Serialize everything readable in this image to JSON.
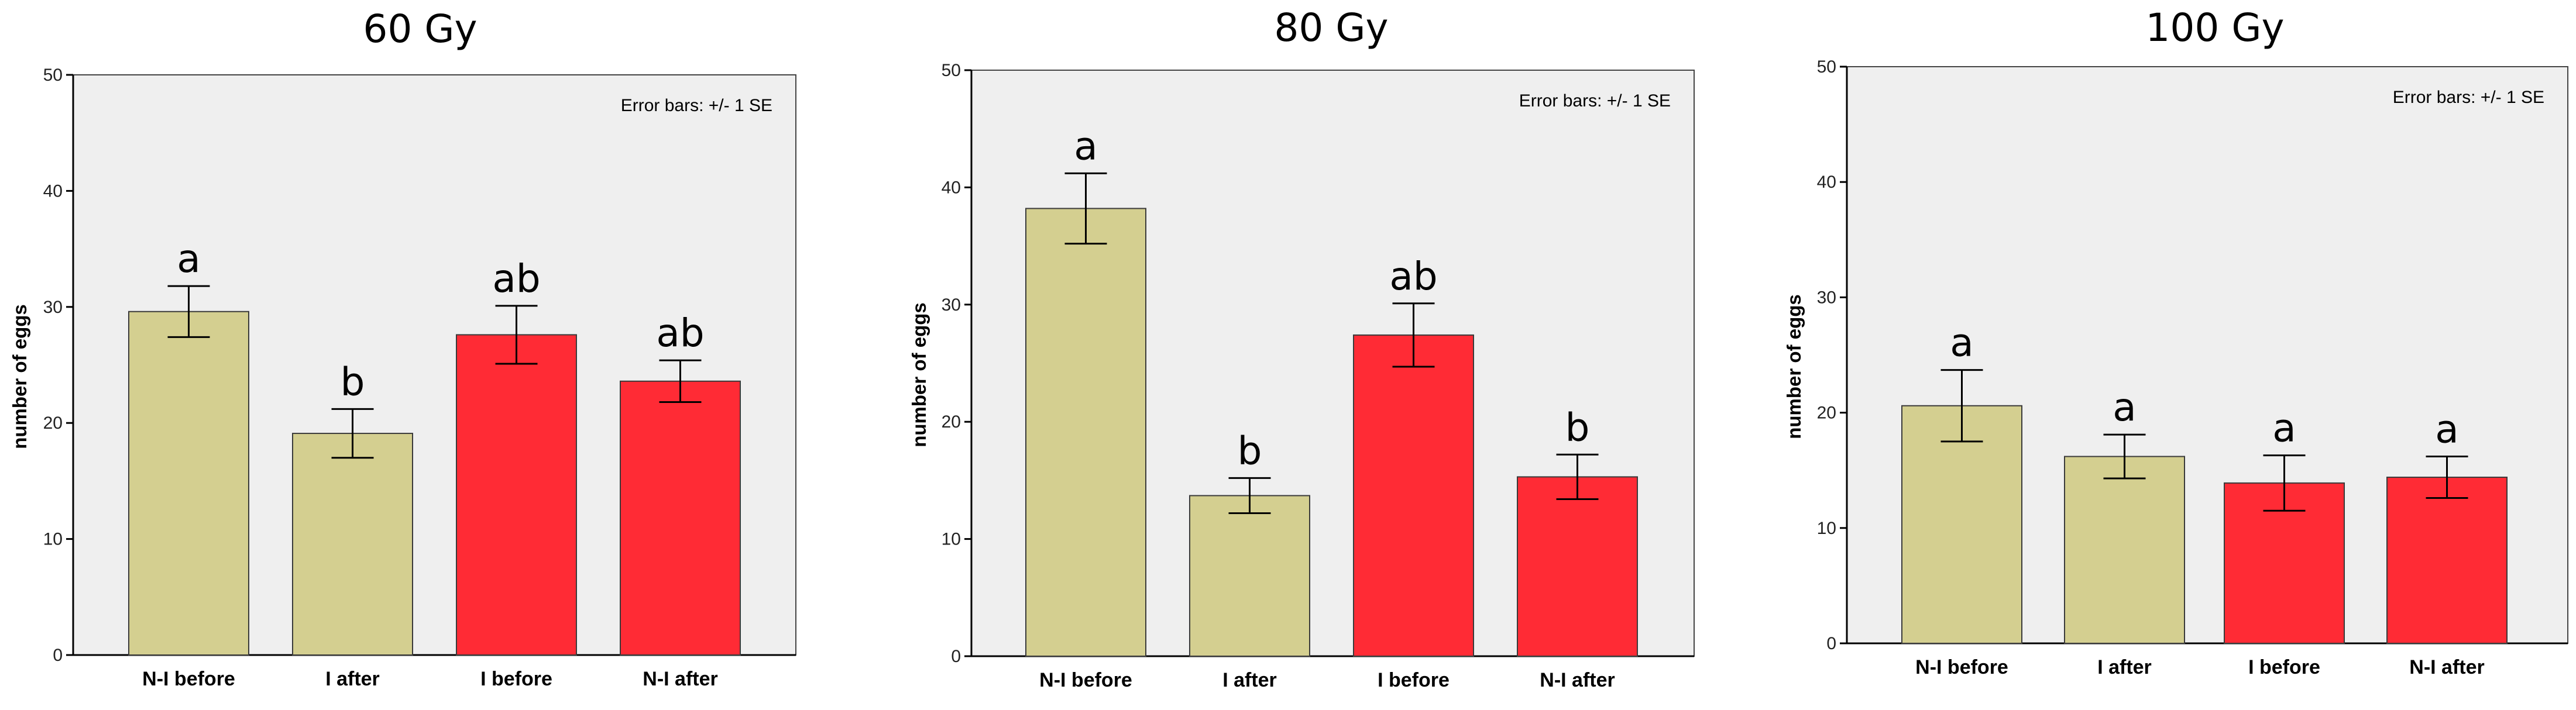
{
  "chart_data": [
    {
      "type": "bar",
      "title": "60 Gy",
      "ylabel": "number of eggs",
      "xlabel": "",
      "note": "Error bars: +/- 1 SE",
      "ylim": [
        0,
        50
      ],
      "yticks": [
        "0",
        "10",
        "20",
        "30",
        "40",
        "50"
      ],
      "grid": false,
      "categories": [
        "N-I before",
        "I after",
        "I before",
        "N-I after"
      ],
      "values": [
        29.6,
        19.1,
        27.6,
        23.6
      ],
      "se": [
        2.2,
        2.1,
        2.5,
        1.8
      ],
      "significance": [
        "a",
        "b",
        "ab",
        "ab"
      ],
      "bar_colors": [
        "#d4cf90",
        "#d4cf90",
        "#ff2b35",
        "#ff2b35"
      ]
    },
    {
      "type": "bar",
      "title": "80 Gy",
      "ylabel": "number of eggs",
      "xlabel": "",
      "note": "Error bars: +/- 1 SE",
      "ylim": [
        0,
        50
      ],
      "yticks": [
        "0",
        "10",
        "20",
        "30",
        "40",
        "50"
      ],
      "grid": false,
      "categories": [
        "N-I before",
        "I after",
        "I before",
        "N-I after"
      ],
      "values": [
        38.2,
        13.7,
        27.4,
        15.3
      ],
      "se": [
        3.0,
        1.5,
        2.7,
        1.9
      ],
      "significance": [
        "a",
        "b",
        "ab",
        "b"
      ],
      "bar_colors": [
        "#d4cf90",
        "#d4cf90",
        "#ff2b35",
        "#ff2b35"
      ]
    },
    {
      "type": "bar",
      "title": "100 Gy",
      "ylabel": "number of eggs",
      "xlabel": "",
      "note": "Error bars: +/- 1 SE",
      "ylim": [
        0,
        50
      ],
      "yticks": [
        "0",
        "10",
        "20",
        "30",
        "40",
        "50"
      ],
      "grid": false,
      "categories": [
        "N-I before",
        "I after",
        "I before",
        "N-I after"
      ],
      "values": [
        20.6,
        16.2,
        13.9,
        14.4
      ],
      "se": [
        3.1,
        1.9,
        2.4,
        1.8
      ],
      "significance": [
        "a",
        "a",
        "a",
        "a"
      ],
      "bar_colors": [
        "#d4cf90",
        "#d4cf90",
        "#ff2b35",
        "#ff2b35"
      ]
    }
  ],
  "colors": {
    "plot_background": "#efefef",
    "axis": "#000000",
    "frame": "#444444",
    "bar_outline": "#3a3a3a"
  }
}
